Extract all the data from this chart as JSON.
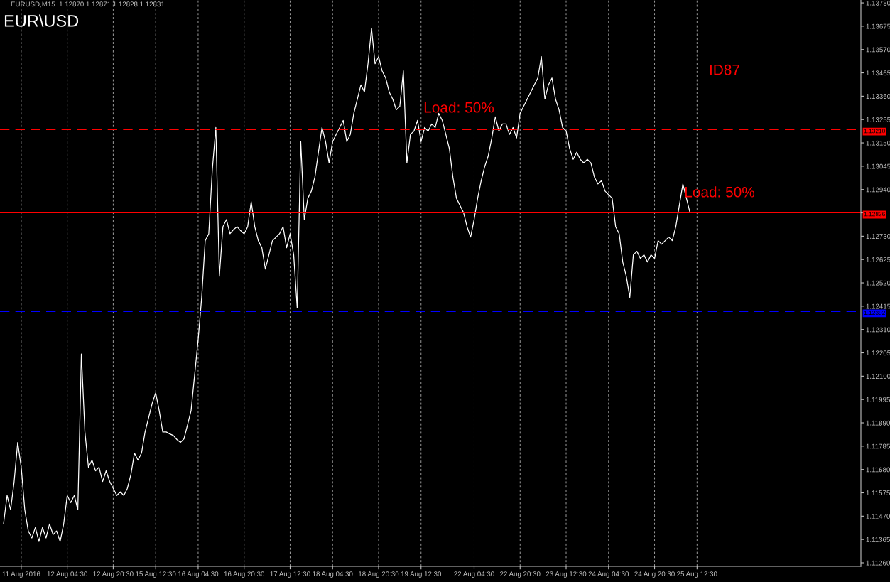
{
  "chart_data": {
    "type": "line",
    "title": "EUR\\USD",
    "subtitle": "EURUSD,M15  1.12870 1.12871 1.12828 1.12831",
    "annotations": [
      "Load: 50%",
      "Load: 50%",
      "ID87"
    ],
    "categories": [
      null,
      null,
      null,
      null,
      null,
      "11 Aug 2016",
      null,
      null,
      null,
      null,
      null,
      null,
      null,
      null,
      null,
      null,
      null,
      null,
      "12 Aug 04:30",
      null,
      null,
      null,
      null,
      null,
      null,
      null,
      null,
      null,
      null,
      null,
      null,
      "12 Aug 20:30",
      null,
      null,
      null,
      null,
      null,
      null,
      null,
      null,
      null,
      null,
      null,
      "15 Aug 12:30",
      null,
      null,
      null,
      null,
      null,
      null,
      null,
      null,
      null,
      null,
      null,
      "16 Aug 04:30",
      null,
      null,
      null,
      null,
      null,
      null,
      null,
      null,
      null,
      null,
      null,
      null,
      "16 Aug 20:30",
      null,
      null,
      null,
      null,
      null,
      null,
      null,
      null,
      null,
      null,
      null,
      null,
      "17 Aug 12:30",
      null,
      null,
      null,
      null,
      null,
      null,
      null,
      null,
      null,
      null,
      null,
      "18 Aug 04:30",
      null,
      null,
      null,
      null,
      null,
      null,
      null,
      null,
      null,
      null,
      null,
      null,
      "18 Aug 20:30",
      null,
      null,
      null,
      null,
      null,
      null,
      null,
      null,
      null,
      null,
      null,
      "19 Aug 12:30",
      null,
      null,
      null,
      null,
      null,
      null,
      null,
      null,
      null,
      null,
      null,
      null,
      null,
      null,
      "22 Aug 04:30",
      null,
      null,
      null,
      null,
      null,
      null,
      null,
      null,
      null,
      null,
      null,
      null,
      "22 Aug 20:30",
      null,
      null,
      null,
      null,
      null,
      null,
      null,
      null,
      null,
      null,
      null,
      null,
      "23 Aug 12:30",
      null,
      null,
      null,
      null,
      null,
      null,
      null,
      null,
      null,
      null,
      null,
      "24 Aug 04:30",
      null,
      null,
      null,
      null,
      null,
      null,
      null,
      null,
      null,
      null,
      null,
      null,
      "24 Aug 20:30",
      null,
      null,
      null,
      null,
      null,
      null,
      null,
      null,
      null,
      null,
      null,
      "25 Aug 12:30"
    ],
    "series": [
      {
        "color": "#ffffff",
        "values": [
          1.11435,
          1.11563,
          1.11499,
          1.11626,
          1.11802,
          1.1169,
          1.11499,
          1.11403,
          1.11372,
          1.11419,
          1.11356,
          1.11419,
          1.11372,
          1.11435,
          1.11387,
          1.11403,
          1.11356,
          1.11435,
          1.11563,
          1.11531,
          1.11563,
          1.11499,
          1.122,
          1.11849,
          1.1169,
          1.11722,
          1.11674,
          1.1169,
          1.11626,
          1.11674,
          1.11626,
          1.11595,
          1.11563,
          1.11579,
          1.11563,
          1.11595,
          1.11658,
          1.11754,
          1.11722,
          1.11754,
          1.11849,
          1.11913,
          1.11977,
          1.12025,
          1.11945,
          1.11849,
          1.11849,
          1.1184,
          1.11833,
          1.11815,
          1.11802,
          1.11818,
          1.11881,
          1.11945,
          1.12104,
          1.12264,
          1.12455,
          1.1271,
          1.12741,
          1.13028,
          1.13219,
          1.1255,
          1.12773,
          1.12805,
          1.12741,
          1.1276,
          1.12773,
          1.12755,
          1.12741,
          1.12773,
          1.12885,
          1.12773,
          1.1271,
          1.12678,
          1.12582,
          1.12646,
          1.1271,
          1.12725,
          1.12741,
          1.12773,
          1.12678,
          1.12741,
          1.12646,
          1.12407,
          1.13156,
          1.12805,
          1.12901,
          1.12933,
          1.12996,
          1.13108,
          1.13219,
          1.13156,
          1.1306,
          1.13156,
          1.13188,
          1.13219,
          1.13251,
          1.13156,
          1.13188,
          1.13283,
          1.13347,
          1.13411,
          1.13379,
          1.13506,
          1.13665,
          1.13506,
          1.13538,
          1.13474,
          1.13442,
          1.13379,
          1.13347,
          1.13299,
          1.13315,
          1.13474,
          1.1306,
          1.13188,
          1.13203,
          1.13251,
          1.13156,
          1.13219,
          1.13203,
          1.13235,
          1.13219,
          1.13283,
          1.13251,
          1.13188,
          1.13124,
          1.12996,
          1.12901,
          1.12869,
          1.12837,
          1.12773,
          1.12726,
          1.12805,
          1.12901,
          1.1298,
          1.13044,
          1.13092,
          1.13172,
          1.13267,
          1.13203,
          1.13235,
          1.13235,
          1.13188,
          1.13219,
          1.13172,
          1.13283,
          1.13315,
          1.13347,
          1.13379,
          1.13411,
          1.13442,
          1.13538,
          1.13347,
          1.13411,
          1.13442,
          1.13347,
          1.13299,
          1.13219,
          1.13203,
          1.13124,
          1.13076,
          1.13108,
          1.13076,
          1.1306,
          1.13076,
          1.1306,
          1.12996,
          1.12965,
          1.1298,
          1.12933,
          1.12917,
          1.12901,
          1.12773,
          1.12741,
          1.12614,
          1.1255,
          1.12455,
          1.12646,
          1.12662,
          1.1263,
          1.12646,
          1.12614,
          1.12646,
          1.1263,
          1.1271,
          1.12694,
          1.1271,
          1.12726,
          1.1271,
          1.12773,
          1.12869,
          1.12965,
          1.12901,
          1.12837,
          null,
          null
        ]
      }
    ],
    "ylim": [
      1.11244,
      1.13793
    ],
    "yticks": [
      {
        "value": 1.1126,
        "label": "1.11260"
      },
      {
        "value": 1.11365,
        "label": "1.11365"
      },
      {
        "value": 1.1147,
        "label": "1.11470"
      },
      {
        "value": 1.11575,
        "label": "1.11575"
      },
      {
        "value": 1.1168,
        "label": "1.11680"
      },
      {
        "value": 1.11785,
        "label": "1.11785"
      },
      {
        "value": 1.1189,
        "label": "1.11890"
      },
      {
        "value": 1.11995,
        "label": "1.11995"
      },
      {
        "value": 1.121,
        "label": "1.12100"
      },
      {
        "value": 1.12205,
        "label": "1.12205"
      },
      {
        "value": 1.1231,
        "label": "1.12310"
      },
      {
        "value": 1.12415,
        "label": "1.12415"
      },
      {
        "value": 1.1252,
        "label": "1.12520"
      },
      {
        "value": 1.12625,
        "label": "1.12625"
      },
      {
        "value": 1.1273,
        "label": "1.12730"
      },
      {
        "value": 1.12835,
        "label": null
      },
      {
        "value": 1.1294,
        "label": "1.12940"
      },
      {
        "value": 1.13045,
        "label": "1.13045"
      },
      {
        "value": 1.1315,
        "label": "1.13150"
      },
      {
        "value": 1.13255,
        "label": "1.13255"
      },
      {
        "value": 1.1336,
        "label": "1.13360"
      },
      {
        "value": 1.13465,
        "label": "1.13465"
      },
      {
        "value": 1.1357,
        "label": "1.13570"
      },
      {
        "value": 1.13675,
        "label": "1.13675"
      },
      {
        "value": 1.1378,
        "label": "1.13780"
      }
    ],
    "ref_lines": [
      {
        "axis": "y",
        "value": 1.1321,
        "label": "1.13210",
        "color": "#ff0000",
        "line_style": "dashed"
      },
      {
        "axis": "y",
        "value": 1.12836,
        "label": "1.12836",
        "color": "#ff0000",
        "line_style": "solid"
      },
      {
        "axis": "y",
        "value": 1.12392,
        "label": "1.12392",
        "color": "#0000ff",
        "line_style": "dashed"
      }
    ],
    "grid": "x",
    "legend": false,
    "marker": "none",
    "line_style": "solid"
  }
}
